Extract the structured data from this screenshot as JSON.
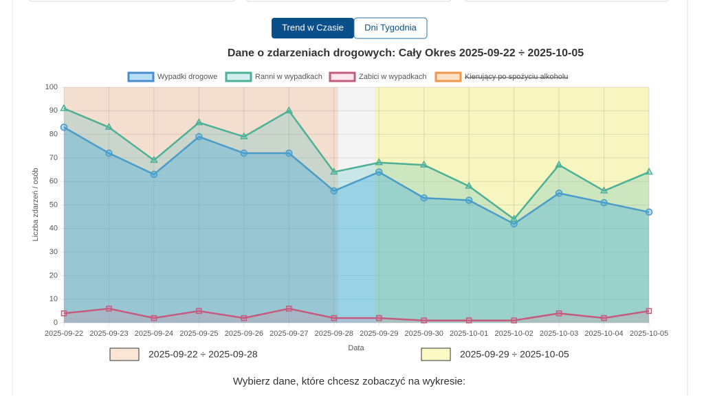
{
  "tabs": [
    "Trend w Czasie",
    "Dni Tygodnia"
  ],
  "chart_data": {
    "type": "line",
    "title": "Dane o zdarzeniach drogowych: Cały Okres 2025-09-22 ÷ 2025-10-05",
    "x_label": "Data",
    "y_label": "Liczba zdarzeń / osób",
    "categories": [
      "2025-09-22",
      "2025-09-23",
      "2025-09-24",
      "2025-09-25",
      "2025-09-26",
      "2025-09-27",
      "2025-09-28",
      "2025-09-29",
      "2025-09-30",
      "2025-10-01",
      "2025-10-02",
      "2025-10-03",
      "2025-10-04",
      "2025-10-05"
    ],
    "series": [
      {
        "name": "Wypadki drogowe",
        "color": "#4a8fcb",
        "fill": "rgba(54,162,235,0.35)",
        "marker": "circle",
        "values": [
          83,
          72,
          63,
          79,
          72,
          72,
          56,
          64,
          53,
          52,
          42,
          55,
          51,
          47
        ]
      },
      {
        "name": "Ranni w wypadkach",
        "color": "#4daf95",
        "fill": "rgba(75,192,192,0.25)",
        "marker": "triangle",
        "values": [
          91,
          83,
          69,
          85,
          79,
          90,
          64,
          68,
          67,
          58,
          44,
          67,
          56,
          64
        ]
      },
      {
        "name": "Zabici w wypadkach",
        "color": "#c45a7e",
        "fill": "rgba(255,99,132,0.15)",
        "marker": "square",
        "values": [
          4,
          6,
          2,
          5,
          2,
          6,
          2,
          2,
          1,
          1,
          1,
          4,
          2,
          5
        ]
      },
      {
        "name": "Kierujący po spożyciu alkoholu",
        "color": "#f0974a",
        "fill": "rgba(255,159,64,0.3)",
        "hidden": true
      }
    ],
    "ranges": [
      {
        "label": "2025-09-22 ÷ 2025-09-28",
        "from": "2025-09-22",
        "to": "2025-09-28",
        "color": "rgba(244,180,140,0.35)"
      },
      {
        "label": "2025-09-29 ÷ 2025-10-05",
        "from": "2025-09-29",
        "to": "2025-10-05",
        "color": "rgba(250,245,150,0.55)"
      }
    ],
    "ylim": [
      0,
      100
    ],
    "yticks": [
      0,
      10,
      20,
      30,
      40,
      50,
      60,
      70,
      80,
      90,
      100
    ],
    "grid": true
  },
  "footer": "Wybierz dane, które chcesz zobaczyć na wykresie:"
}
